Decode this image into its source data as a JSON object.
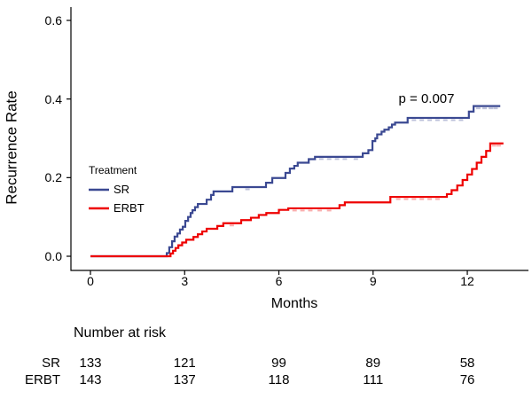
{
  "figure": {
    "y_axis_title": "Recurrence Rate",
    "x_axis_title": "Months",
    "p_value_label": "p = 0.007",
    "legend": {
      "title": "Treatment",
      "items": [
        {
          "label": "SR",
          "color": "#3B4992"
        },
        {
          "label": "ERBT",
          "color": "#EE0000"
        }
      ]
    }
  },
  "chart_data": {
    "type": "line",
    "subtype": "kaplan-meier-cumulative-incidence-step",
    "title": "",
    "xlabel": "Months",
    "ylabel": "Recurrence Rate",
    "xlim": [
      0,
      13.5
    ],
    "ylim": [
      0,
      0.6
    ],
    "x_ticks": [
      0,
      3,
      6,
      9,
      12
    ],
    "y_tick_labels": [
      "0.0",
      "0.2",
      "0.4",
      "0.6"
    ],
    "y_tick_values": [
      0.0,
      0.2,
      0.4,
      0.6
    ],
    "grid": "off",
    "legend_position": "inside-left",
    "legend_title": "Treatment",
    "annotation": {
      "text": "p = 0.007",
      "x_month": 10.7,
      "y_rate": 0.4
    },
    "series": [
      {
        "name": "SR",
        "color": "#3B4992",
        "censor_color": "rgba(59,73,146,0.35)",
        "steps": [
          [
            0,
            0
          ],
          [
            2.37,
            0
          ],
          [
            2.43,
            0.008
          ],
          [
            2.51,
            0.023
          ],
          [
            2.6,
            0.038
          ],
          [
            2.68,
            0.05
          ],
          [
            2.77,
            0.058
          ],
          [
            2.85,
            0.068
          ],
          [
            2.94,
            0.075
          ],
          [
            3.02,
            0.09
          ],
          [
            3.11,
            0.1
          ],
          [
            3.19,
            0.11
          ],
          [
            3.25,
            0.117
          ],
          [
            3.33,
            0.125
          ],
          [
            3.42,
            0.133
          ],
          [
            3.7,
            0.144
          ],
          [
            3.84,
            0.156
          ],
          [
            3.92,
            0.165
          ],
          [
            4.52,
            0.176
          ],
          [
            5.59,
            0.187
          ],
          [
            5.79,
            0.199
          ],
          [
            6.21,
            0.212
          ],
          [
            6.35,
            0.223
          ],
          [
            6.49,
            0.23
          ],
          [
            6.6,
            0.238
          ],
          [
            6.95,
            0.247
          ],
          [
            7.15,
            0.253
          ],
          [
            8.67,
            0.262
          ],
          [
            8.85,
            0.27
          ],
          [
            8.98,
            0.293
          ],
          [
            9.07,
            0.3
          ],
          [
            9.13,
            0.31
          ],
          [
            9.27,
            0.317
          ],
          [
            9.36,
            0.322
          ],
          [
            9.5,
            0.328
          ],
          [
            9.6,
            0.335
          ],
          [
            9.7,
            0.34
          ],
          [
            10.1,
            0.352
          ],
          [
            12.05,
            0.368
          ],
          [
            12.2,
            0.382
          ],
          [
            13.05,
            0.382
          ]
        ],
        "censor_marks": [
          [
            5.0,
            0.176
          ],
          [
            7.35,
            0.253
          ],
          [
            7.6,
            0.253
          ],
          [
            7.85,
            0.253
          ],
          [
            8.1,
            0.253
          ],
          [
            8.45,
            0.253
          ],
          [
            10.3,
            0.352
          ],
          [
            10.55,
            0.352
          ],
          [
            10.8,
            0.352
          ],
          [
            11.05,
            0.352
          ],
          [
            11.3,
            0.352
          ],
          [
            11.55,
            0.352
          ],
          [
            11.8,
            0.352
          ],
          [
            12.35,
            0.382
          ],
          [
            12.55,
            0.382
          ],
          [
            12.75,
            0.382
          ],
          [
            12.9,
            0.382
          ]
        ]
      },
      {
        "name": "ERBT",
        "color": "#EE0000",
        "censor_color": "rgba(238,0,0,0.32)",
        "steps": [
          [
            0,
            0
          ],
          [
            2.48,
            0
          ],
          [
            2.55,
            0.007
          ],
          [
            2.63,
            0.014
          ],
          [
            2.71,
            0.021
          ],
          [
            2.8,
            0.028
          ],
          [
            2.92,
            0.035
          ],
          [
            3.05,
            0.042
          ],
          [
            3.28,
            0.049
          ],
          [
            3.42,
            0.056
          ],
          [
            3.56,
            0.063
          ],
          [
            3.7,
            0.07
          ],
          [
            4.04,
            0.077
          ],
          [
            4.23,
            0.084
          ],
          [
            4.8,
            0.092
          ],
          [
            5.11,
            0.098
          ],
          [
            5.36,
            0.105
          ],
          [
            5.6,
            0.11
          ],
          [
            6.0,
            0.118
          ],
          [
            6.3,
            0.122
          ],
          [
            7.93,
            0.13
          ],
          [
            8.1,
            0.137
          ],
          [
            9.55,
            0.151
          ],
          [
            11.35,
            0.158
          ],
          [
            11.5,
            0.168
          ],
          [
            11.68,
            0.18
          ],
          [
            11.85,
            0.194
          ],
          [
            12.0,
            0.208
          ],
          [
            12.15,
            0.222
          ],
          [
            12.3,
            0.238
          ],
          [
            12.45,
            0.253
          ],
          [
            12.6,
            0.268
          ],
          [
            12.73,
            0.287
          ],
          [
            13.15,
            0.287
          ]
        ],
        "censor_marks": [
          [
            4.5,
            0.084
          ],
          [
            6.5,
            0.122
          ],
          [
            6.75,
            0.122
          ],
          [
            7.0,
            0.122
          ],
          [
            7.3,
            0.122
          ],
          [
            7.6,
            0.122
          ],
          [
            9.8,
            0.151
          ],
          [
            10.05,
            0.151
          ],
          [
            10.3,
            0.151
          ],
          [
            10.55,
            0.151
          ],
          [
            10.8,
            0.151
          ],
          [
            11.05,
            0.151
          ],
          [
            12.85,
            0.287
          ],
          [
            13.0,
            0.287
          ]
        ]
      }
    ]
  },
  "risk_table": {
    "title": "Number at risk",
    "time_points": [
      0,
      3,
      6,
      9,
      12
    ],
    "rows": [
      {
        "label": "SR",
        "values": [
          "133",
          "121",
          "99",
          "89",
          "58"
        ]
      },
      {
        "label": "ERBT",
        "values": [
          "143",
          "137",
          "118",
          "111",
          "76"
        ]
      }
    ]
  }
}
